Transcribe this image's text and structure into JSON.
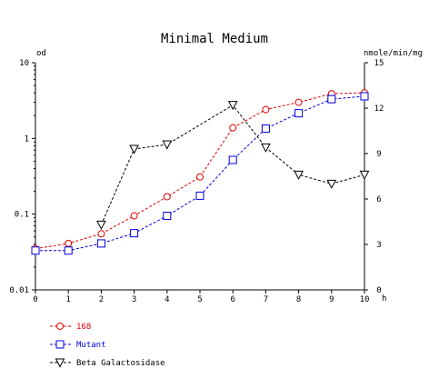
{
  "chart_data": {
    "type": "line",
    "title": "Minimal Medium",
    "x_unit": "h",
    "x": [
      0,
      1,
      2,
      3,
      4,
      5,
      6,
      7,
      8,
      9,
      10
    ],
    "x_ticks": [
      "0",
      "1",
      "2",
      "3",
      "4",
      "5",
      "6",
      "7",
      "8",
      "9",
      "10"
    ],
    "x_range": [
      0,
      10
    ],
    "left_axis": {
      "label": "od",
      "scale": "log",
      "range": [
        0.01,
        10
      ],
      "ticks": [
        {
          "value": 0.01,
          "label": "0.01"
        },
        {
          "value": 0.1,
          "label": "0.1"
        },
        {
          "value": 1,
          "label": "1"
        },
        {
          "value": 10,
          "label": "10"
        }
      ]
    },
    "right_axis": {
      "label": "nmole/min/mg",
      "scale": "linear",
      "range": [
        0,
        15
      ],
      "ticks": [
        {
          "value": 0,
          "label": "0"
        },
        {
          "value": 3,
          "label": "3"
        },
        {
          "value": 6,
          "label": "6"
        },
        {
          "value": 9,
          "label": "9"
        },
        {
          "value": 12,
          "label": "12"
        },
        {
          "value": 15,
          "label": "15"
        }
      ]
    },
    "grid": false,
    "legend_position": "bottom-left",
    "series": [
      {
        "name": "168",
        "axis": "left",
        "marker": "circle",
        "color": "#e00000",
        "x": [
          0,
          1,
          2,
          3,
          4,
          5,
          6,
          7,
          8,
          9,
          10
        ],
        "values": [
          0.035,
          0.041,
          0.055,
          0.095,
          0.17,
          0.31,
          1.38,
          2.4,
          3.0,
          3.9,
          4.0
        ]
      },
      {
        "name": "Mutant",
        "axis": "left",
        "marker": "square",
        "color": "#0000e0",
        "x": [
          0,
          1,
          2,
          3,
          4,
          5,
          6,
          7,
          8,
          9,
          10
        ],
        "values": [
          0.033,
          0.033,
          0.041,
          0.056,
          0.095,
          0.175,
          0.52,
          1.35,
          2.15,
          3.3,
          3.6
        ]
      },
      {
        "name": "Beta Galactosidase",
        "axis": "right",
        "marker": "triangle-down",
        "color": "#000000",
        "x": [
          2,
          3,
          4,
          6,
          7,
          8,
          9,
          10
        ],
        "values": [
          4.3,
          9.3,
          9.6,
          12.2,
          9.4,
          7.6,
          7.0,
          7.6
        ]
      }
    ]
  }
}
